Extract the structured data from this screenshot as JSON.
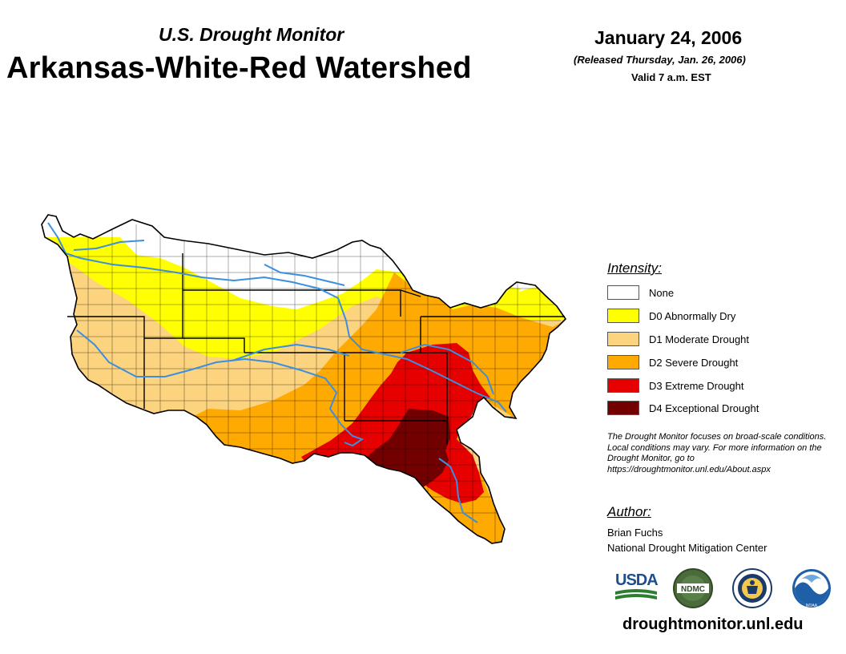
{
  "header": {
    "subtitle": "U.S. Drought Monitor",
    "title": "Arkansas-White-Red Watershed",
    "date": "January 24, 2006",
    "released": "(Released Thursday, Jan. 26, 2006)",
    "valid": "Valid 7 a.m. EST"
  },
  "legend": {
    "heading": "Intensity:",
    "items": [
      {
        "label": "None",
        "color": "#ffffff"
      },
      {
        "label": "D0 Abnormally Dry",
        "color": "#ffff00"
      },
      {
        "label": "D1 Moderate Drought",
        "color": "#fcd37f"
      },
      {
        "label": "D2 Severe Drought",
        "color": "#ffaa00"
      },
      {
        "label": "D3 Extreme Drought",
        "color": "#e60000"
      },
      {
        "label": "D4 Exceptional Drought",
        "color": "#730000"
      }
    ]
  },
  "disclaimer": "The Drought Monitor focuses on broad-scale conditions. Local conditions may vary. For more information on the Drought Monitor, go to https://droughtmonitor.unl.edu/About.aspx",
  "author": {
    "heading": "Author:",
    "name": "Brian Fuchs",
    "organization": "National Drought Mitigation Center"
  },
  "logos": {
    "usda": "USDA",
    "ndmc": "NDMC",
    "noaa": "NOAA"
  },
  "website": "droughtmonitor.unl.edu",
  "colors": {
    "river": "#3a8fe0",
    "border": "#000000"
  }
}
